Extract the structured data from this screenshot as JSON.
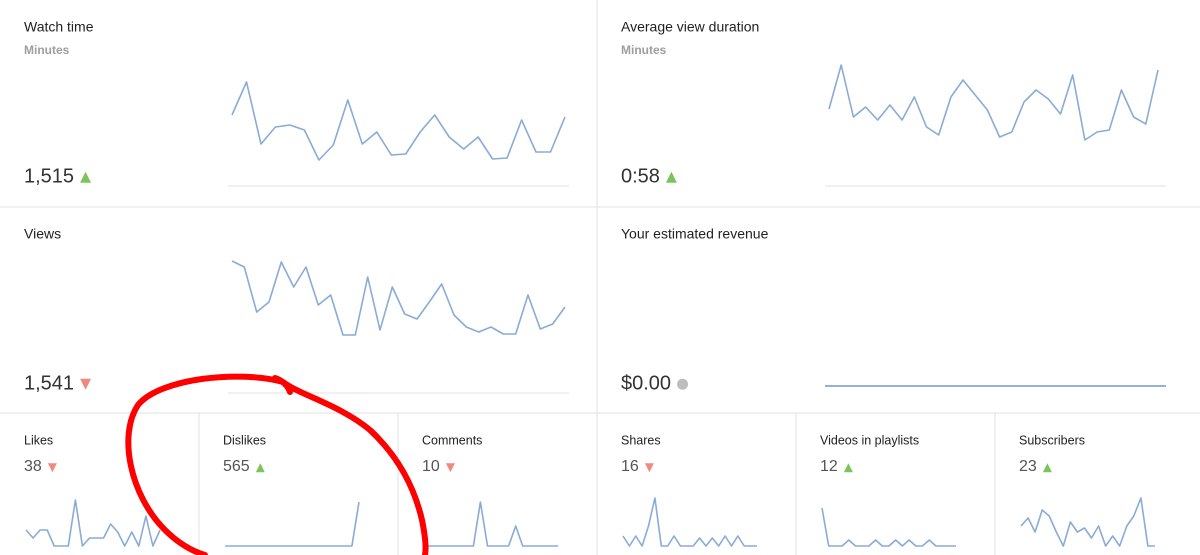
{
  "cards": [
    {
      "title": "Watch time",
      "subtitle": "Minutes",
      "value": "1,515",
      "trend": "up",
      "spark": [
        58,
        91,
        29,
        46,
        48,
        43,
        13,
        28,
        73,
        29,
        41,
        18,
        19,
        41,
        58,
        36,
        24,
        36,
        14,
        15,
        53,
        21,
        21,
        56
      ]
    },
    {
      "title": "Average view duration",
      "subtitle": "Minutes",
      "value": "0:58",
      "trend": "up",
      "spark": [
        64,
        108,
        56,
        66,
        53,
        68,
        53,
        76,
        46,
        38,
        76,
        93,
        78,
        63,
        36,
        41,
        71,
        83,
        74,
        59,
        98,
        33,
        41,
        43,
        83,
        56,
        49,
        103
      ]
    },
    {
      "title": "Views",
      "value": "1,541",
      "trend": "down",
      "spark": [
        119,
        113,
        68,
        78,
        118,
        93,
        113,
        75,
        85,
        45,
        45,
        103,
        50,
        93,
        66,
        61,
        78,
        96,
        65,
        53,
        48,
        53,
        46,
        46,
        85,
        51,
        56,
        73
      ]
    },
    {
      "title": "Your estimated revenue",
      "value": "$0.00",
      "trend": "flat",
      "spark": [
        0,
        0,
        0,
        0,
        0,
        0,
        0,
        0,
        0,
        0,
        0,
        0,
        0,
        0,
        0,
        0,
        0,
        0,
        0,
        0,
        0,
        0,
        0,
        0,
        0,
        0,
        0,
        0
      ]
    }
  ],
  "metrics": [
    {
      "title": "Likes",
      "value": "38",
      "trend": "down",
      "spark": [
        16,
        8,
        16,
        16,
        0,
        0,
        0,
        46,
        0,
        8,
        8,
        8,
        22,
        14,
        0,
        14,
        0,
        30,
        0,
        16
      ]
    },
    {
      "title": "Dislikes",
      "value": "565",
      "trend": "up",
      "spark": [
        0,
        0,
        0,
        0,
        0,
        0,
        0,
        0,
        0,
        0,
        0,
        0,
        0,
        0,
        0,
        0,
        0,
        0,
        0,
        44
      ]
    },
    {
      "title": "Comments",
      "value": "10",
      "trend": "down",
      "spark": [
        0,
        0,
        0,
        0,
        0,
        0,
        0,
        0,
        44,
        0,
        0,
        0,
        0,
        20,
        0,
        0,
        0,
        0,
        0,
        0
      ]
    },
    {
      "title": "Shares",
      "value": "16",
      "trend": "down",
      "spark": [
        10,
        0,
        10,
        0,
        20,
        48,
        0,
        0,
        10,
        0,
        0,
        0,
        8,
        0,
        8,
        0,
        10,
        0,
        10,
        0,
        0,
        0
      ]
    },
    {
      "title": "Videos in playlists",
      "value": "12",
      "trend": "up",
      "spark": [
        38,
        0,
        0,
        0,
        6,
        0,
        0,
        0,
        6,
        0,
        0,
        6,
        0,
        6,
        0,
        0,
        6,
        0,
        0,
        0,
        0
      ]
    },
    {
      "title": "Subscribers",
      "value": "23",
      "trend": "up",
      "spark": [
        20,
        28,
        14,
        36,
        30,
        14,
        0,
        24,
        14,
        18,
        8,
        20,
        0,
        10,
        0,
        20,
        30,
        48,
        0,
        0
      ]
    }
  ]
}
